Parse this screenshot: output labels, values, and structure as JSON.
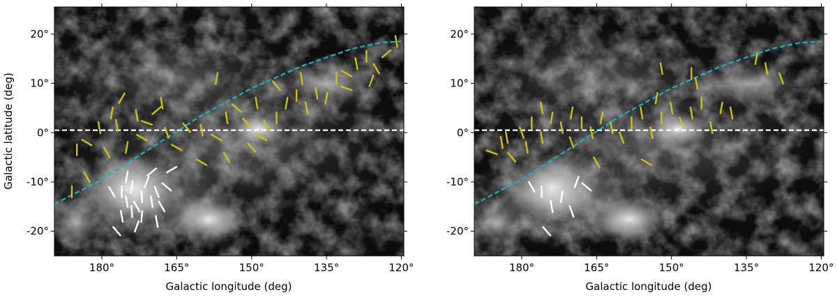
{
  "chart_data": [
    {
      "type": "scatter",
      "panel": "left",
      "xlabel": "Galactic longitude (deg)",
      "ylabel": "Galactic latitude (deg)",
      "xlim": [
        189.5,
        119.5
      ],
      "ylim": [
        -25,
        25.5
      ],
      "x_ticks": [
        {
          "value": 180,
          "label": "180°"
        },
        {
          "value": 165,
          "label": "165°"
        },
        {
          "value": 150,
          "label": "150°"
        },
        {
          "value": 135,
          "label": "135°"
        },
        {
          "value": 120,
          "label": "120°"
        }
      ],
      "y_ticks": [
        {
          "value": 20,
          "label": "20°"
        },
        {
          "value": 10,
          "label": "10°"
        },
        {
          "value": 0,
          "label": "0°"
        },
        {
          "value": -10,
          "label": "-10°"
        },
        {
          "value": -20,
          "label": "-20°"
        }
      ],
      "background": "grayscale dust emission map",
      "reference_lines": [
        {
          "name": "galactic-plane-line",
          "style": "dashed",
          "color": "#ffffff",
          "y": 0.5
        },
        {
          "name": "cyan-curve",
          "style": "dashed",
          "color": "#18b5c0",
          "points": [
            [
              189.5,
              -14.5
            ],
            [
              180,
              -9.5
            ],
            [
              170,
              -3
            ],
            [
              160,
              3.5
            ],
            [
              150,
              9
            ],
            [
              140,
              13.5
            ],
            [
              130,
              17
            ],
            [
              124,
              18.3
            ],
            [
              120,
              18.5
            ]
          ]
        }
      ],
      "vector_series": [
        {
          "name": "yellow-vectors",
          "color": "#c8c416",
          "vectors": [
            [
              185,
              -3.5,
              90
            ],
            [
              183,
              -2,
              150
            ],
            [
              180.5,
              1,
              100
            ],
            [
              179,
              -4,
              120
            ],
            [
              178,
              4,
              80
            ],
            [
              177,
              1.5,
              100
            ],
            [
              175,
              -3,
              80
            ],
            [
              173,
              3.5,
              100
            ],
            [
              171,
              2,
              160
            ],
            [
              169,
              4.5,
              40
            ],
            [
              167,
              0,
              110
            ],
            [
              165,
              -3,
              150
            ],
            [
              163,
              1,
              130
            ],
            [
              160,
              0.5,
              100
            ],
            [
              157,
              -1,
              150
            ],
            [
              155,
              3,
              100
            ],
            [
              153,
              5,
              140
            ],
            [
              151,
              2,
              130
            ],
            [
              149,
              6,
              100
            ],
            [
              147,
              1.5,
              120
            ],
            [
              145,
              3,
              90
            ],
            [
              143,
              6,
              80
            ],
            [
              141,
              7.5,
              90
            ],
            [
              139,
              5,
              100
            ],
            [
              137,
              8,
              100
            ],
            [
              135,
              7,
              80
            ],
            [
              133,
              11,
              90
            ],
            [
              131,
              12,
              150
            ],
            [
              129,
              14,
              100
            ],
            [
              127,
              15.5,
              90
            ],
            [
              125,
              13,
              120
            ],
            [
              123,
              16,
              40
            ],
            [
              121,
              18.5,
              100
            ],
            [
              148,
              -1,
              150
            ],
            [
              150,
              -3,
              130
            ],
            [
              155,
              -5,
              120
            ],
            [
              160,
              -6,
              150
            ],
            [
              172,
              -1,
              150
            ],
            [
              176,
              7,
              60
            ],
            [
              183,
              -9,
              120
            ],
            [
              186,
              -12,
              90
            ],
            [
              168,
              6,
              100
            ],
            [
              157,
              11,
              80
            ],
            [
              145,
              9.5,
              130
            ],
            [
              140,
              11,
              100
            ],
            [
              131,
              9,
              160
            ],
            [
              126,
              10.5,
              70
            ]
          ]
        },
        {
          "name": "white-vectors",
          "color": "#ffffff",
          "vectors": [
            [
              176,
              -12,
              90
            ],
            [
              175,
              -14,
              100
            ],
            [
              174,
              -11,
              80
            ],
            [
              173,
              -15,
              120
            ],
            [
              172,
              -13,
              95
            ],
            [
              171,
              -10,
              70
            ],
            [
              170,
              -14,
              100
            ],
            [
              169,
              -12,
              110
            ],
            [
              174,
              -16,
              95
            ],
            [
              176,
              -17,
              100
            ],
            [
              172,
              -17,
              85
            ],
            [
              168,
              -15,
              120
            ],
            [
              175,
              -9,
              80
            ],
            [
              167,
              -11,
              140
            ],
            [
              178,
              -12,
              120
            ],
            [
              170,
              -8,
              40
            ],
            [
              173,
              -19,
              70
            ],
            [
              177,
              -20,
              130
            ],
            [
              166,
              -7.5,
              30
            ],
            [
              169,
              -18,
              100
            ]
          ]
        }
      ]
    },
    {
      "type": "scatter",
      "panel": "right",
      "xlabel": "Galactic longitude (deg)",
      "ylabel": "",
      "xlim": [
        189.5,
        119.5
      ],
      "ylim": [
        -25,
        25.5
      ],
      "x_ticks": [
        {
          "value": 180,
          "label": "180°"
        },
        {
          "value": 165,
          "label": "165°"
        },
        {
          "value": 150,
          "label": "150°"
        },
        {
          "value": 135,
          "label": "135°"
        },
        {
          "value": 120,
          "label": "120°"
        }
      ],
      "y_ticks": [
        {
          "value": 20,
          "label": "20°"
        },
        {
          "value": 10,
          "label": "10°"
        },
        {
          "value": 0,
          "label": "0°"
        },
        {
          "value": -10,
          "label": "-10°"
        },
        {
          "value": -20,
          "label": "-20°"
        }
      ],
      "background": "grayscale dust emission map",
      "reference_lines": [
        {
          "name": "galactic-plane-line",
          "style": "dashed",
          "color": "#ffffff",
          "y": 0.5
        },
        {
          "name": "cyan-curve",
          "style": "dashed",
          "color": "#18b5c0",
          "points": [
            [
              189.5,
              -14.5
            ],
            [
              180,
              -9.5
            ],
            [
              170,
              -3
            ],
            [
              160,
              3.5
            ],
            [
              150,
              9
            ],
            [
              140,
              13.5
            ],
            [
              130,
              17
            ],
            [
              124,
              18.3
            ],
            [
              120,
              18.5
            ]
          ]
        }
      ],
      "vector_series": [
        {
          "name": "yellow-vectors",
          "color": "#c8c416",
          "vectors": [
            [
              186,
              -4,
              160
            ],
            [
              184,
              -2,
              100
            ],
            [
              182,
              -5,
              130
            ],
            [
              180,
              0,
              110
            ],
            [
              178,
              2,
              90
            ],
            [
              176,
              -1,
              100
            ],
            [
              174,
              3,
              80
            ],
            [
              172,
              1,
              100
            ],
            [
              170,
              -2,
              110
            ],
            [
              168,
              2,
              90
            ],
            [
              166,
              0,
              100
            ],
            [
              164,
              3,
              80
            ],
            [
              162,
              1,
              100
            ],
            [
              160,
              -1,
              110
            ],
            [
              158,
              2,
              90
            ],
            [
              156,
              4,
              100
            ],
            [
              154,
              0,
              100
            ],
            [
              152,
              3,
              90
            ],
            [
              150,
              5,
              100
            ],
            [
              148,
              2,
              110
            ],
            [
              146,
              4,
              100
            ],
            [
              144,
              6,
              90
            ],
            [
              142,
              1,
              100
            ],
            [
              140,
              5,
              80
            ],
            [
              138,
              4,
              100
            ],
            [
              133,
              15,
              80
            ],
            [
              131,
              13,
              100
            ],
            [
              128,
              11,
              110
            ],
            [
              176,
              5,
              100
            ],
            [
              179,
              -3,
              100
            ],
            [
              183,
              -1,
              100
            ],
            [
              170,
              4,
              80
            ],
            [
              165,
              -6,
              120
            ],
            [
              155,
              -6,
              150
            ],
            [
              153,
              7,
              80
            ],
            [
              145,
              10,
              100
            ],
            [
              146,
              12,
              90
            ],
            [
              152,
              13,
              100
            ]
          ]
        },
        {
          "name": "white-vectors",
          "color": "#ffffff",
          "vectors": [
            [
              176,
              -12,
              90
            ],
            [
              174,
              -15,
              100
            ],
            [
              172,
              -13,
              80
            ],
            [
              170,
              -16,
              110
            ],
            [
              169,
              -10,
              70
            ],
            [
              167,
              -11,
              140
            ],
            [
              178,
              -11,
              120
            ],
            [
              175,
              -20,
              130
            ]
          ]
        }
      ]
    }
  ]
}
